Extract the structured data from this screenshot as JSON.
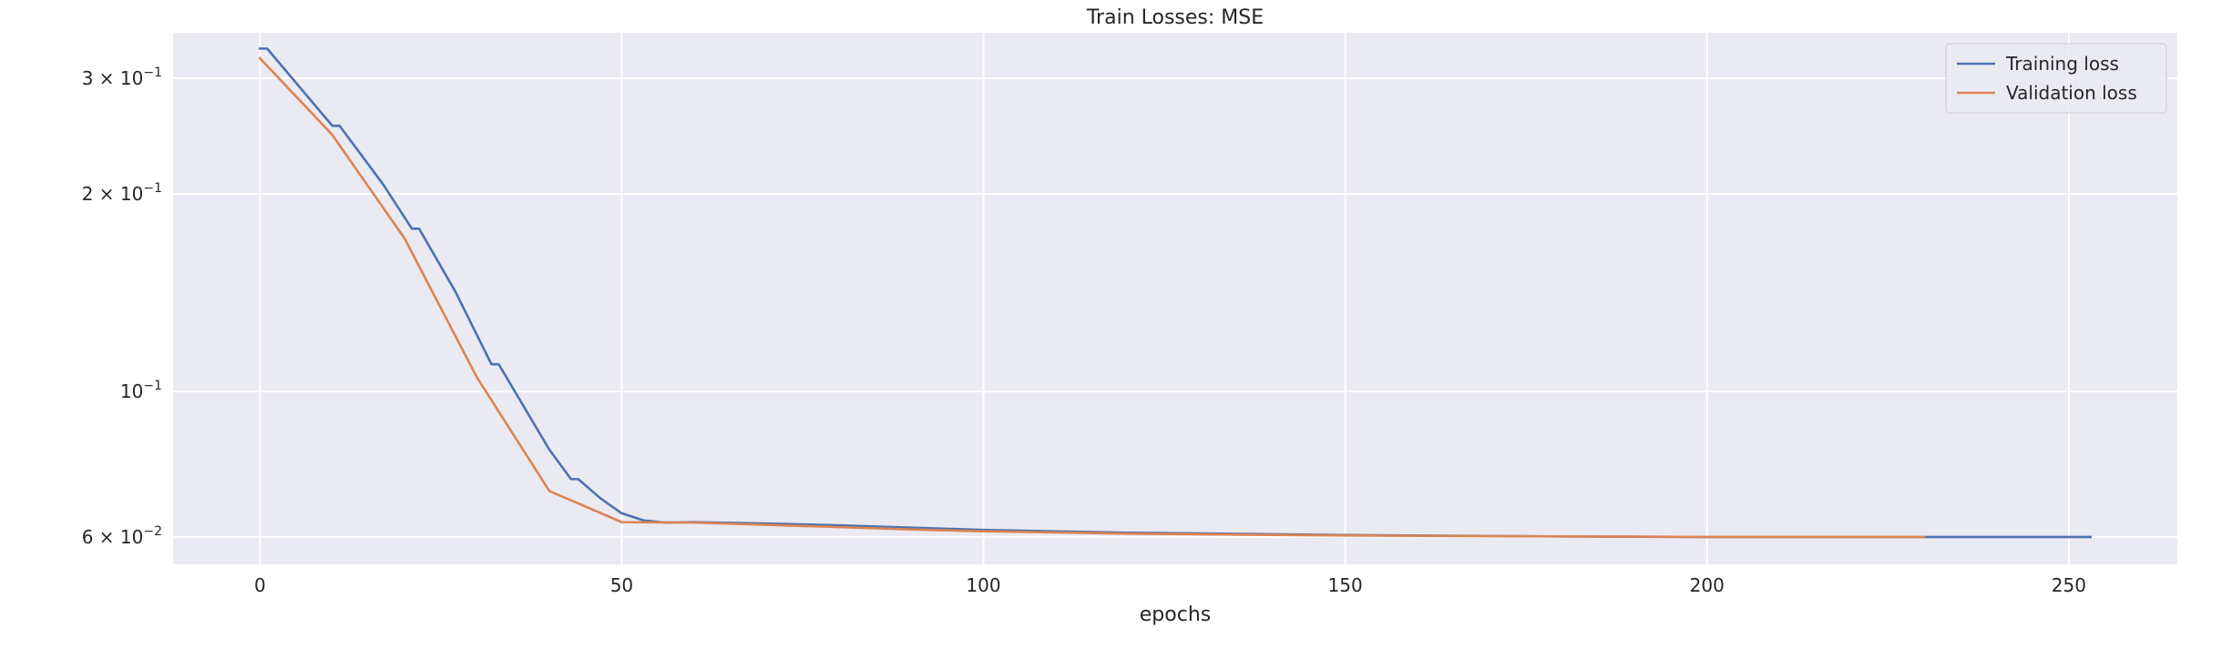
{
  "chart_data": {
    "type": "line",
    "title": "Train Losses:  MSE",
    "xlabel": "epochs",
    "ylabel": "",
    "y_scale": "log",
    "xlim": [
      -12,
      265
    ],
    "ylim": [
      0.0545,
      0.352
    ],
    "grid": true,
    "legend_position": "top-right",
    "background_color": "#eaeaf2",
    "grid_color": "#ffffff",
    "x_ticks": [
      {
        "value": 0,
        "label": "0"
      },
      {
        "value": 50,
        "label": "50"
      },
      {
        "value": 100,
        "label": "100"
      },
      {
        "value": 150,
        "label": "150"
      },
      {
        "value": 200,
        "label": "200"
      },
      {
        "value": 250,
        "label": "250"
      }
    ],
    "y_ticks": [
      {
        "value": 0.06,
        "base": "6 × 10",
        "exp": "−2"
      },
      {
        "value": 0.1,
        "base": "10",
        "exp": "−1"
      },
      {
        "value": 0.2,
        "base": "2 × 10",
        "exp": "−1"
      },
      {
        "value": 0.3,
        "base": "3 × 10",
        "exp": "−1"
      }
    ],
    "series": [
      {
        "name": "Training loss",
        "color": "#4c72b0",
        "points": [
          [
            0,
            0.333
          ],
          [
            1,
            0.333
          ],
          [
            10,
            0.254
          ],
          [
            11,
            0.254
          ],
          [
            17,
            0.207
          ],
          [
            21,
            0.177
          ],
          [
            22,
            0.177
          ],
          [
            27,
            0.142
          ],
          [
            32,
            0.11
          ],
          [
            33,
            0.11
          ],
          [
            40,
            0.0815
          ],
          [
            43,
            0.0735
          ],
          [
            44,
            0.0735
          ],
          [
            47,
            0.0688
          ],
          [
            50,
            0.0652
          ],
          [
            53,
            0.0636
          ],
          [
            56,
            0.0631
          ],
          [
            60,
            0.0632
          ],
          [
            70,
            0.0629
          ],
          [
            80,
            0.0625
          ],
          [
            90,
            0.062
          ],
          [
            100,
            0.0615
          ],
          [
            120,
            0.0609
          ],
          [
            150,
            0.0604
          ],
          [
            180,
            0.0601
          ],
          [
            200,
            0.06
          ],
          [
            230,
            0.06
          ],
          [
            253,
            0.06
          ]
        ]
      },
      {
        "name": "Validation loss",
        "color": "#dd8452",
        "points": [
          [
            0,
            0.322
          ],
          [
            10,
            0.246
          ],
          [
            20,
            0.171
          ],
          [
            30,
            0.105
          ],
          [
            40,
            0.0705
          ],
          [
            50,
            0.0632
          ],
          [
            60,
            0.0631
          ],
          [
            70,
            0.0626
          ],
          [
            80,
            0.0621
          ],
          [
            90,
            0.0616
          ],
          [
            100,
            0.0612
          ],
          [
            120,
            0.0607
          ],
          [
            150,
            0.0603
          ],
          [
            180,
            0.0601
          ],
          [
            200,
            0.06
          ],
          [
            230,
            0.06
          ]
        ]
      }
    ]
  }
}
